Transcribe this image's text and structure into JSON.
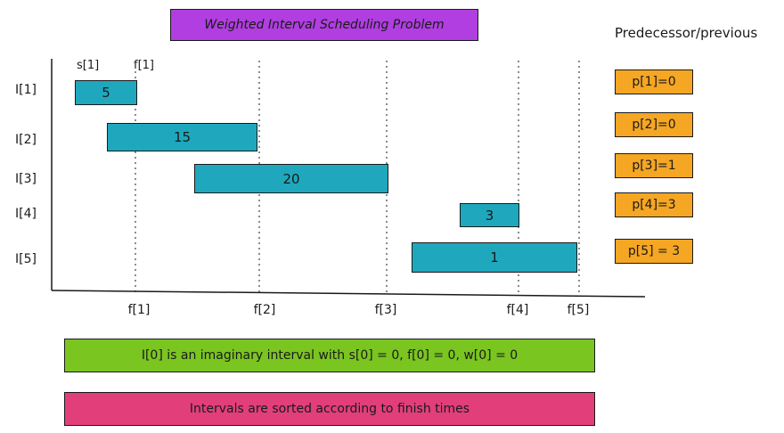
{
  "title": "Weighted Interval Scheduling Problem",
  "predecessor_title": "Predecessor/previous",
  "intervals": [
    {
      "label": "I[1]",
      "weight": "5"
    },
    {
      "label": "I[2]",
      "weight": "15"
    },
    {
      "label": "I[3]",
      "weight": "20"
    },
    {
      "label": "I[4]",
      "weight": "3"
    },
    {
      "label": "I[5]",
      "weight": "1"
    }
  ],
  "top_labels": {
    "s1": "s[1]",
    "f1": "f[1]"
  },
  "finish_labels": [
    "f[1]",
    "f[2]",
    "f[3]",
    "f[4]",
    "f[5]"
  ],
  "predecessors": [
    "p[1]=0",
    "p[2]=0",
    "p[3]=1",
    "p[4]=3",
    "p[5] = 3"
  ],
  "notes": {
    "imaginary": "I[0] is an imaginary interval with s[0] = 0, f[0] = 0, w[0] = 0",
    "sorted": "Intervals are sorted according to finish times"
  },
  "colors": {
    "title_bg": "#b03ee0",
    "bar": "#1fa8bd",
    "pred": "#f5a623",
    "note_green": "#7ac520",
    "note_pink": "#e23f7a"
  }
}
